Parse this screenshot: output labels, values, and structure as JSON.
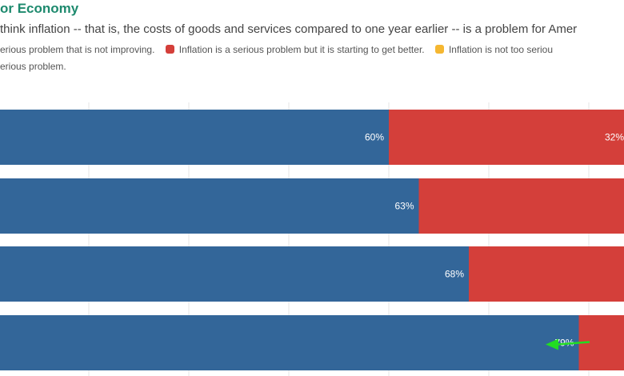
{
  "chart_data": {
    "type": "bar",
    "orientation": "horizontal",
    "stacked": true,
    "title": "or Economy",
    "subtitle": "think inflation -- that is, the costs of goods and services compared to one year earlier -- is a problem for Amer",
    "legend": [
      {
        "text": "erious problem that is not improving.",
        "color": "#336699"
      },
      {
        "text": "Inflation is a serious problem but it is starting to get better.",
        "color": "#d43f3a"
      },
      {
        "text": "Inflation is not too seriou",
        "color": "#f5b731"
      },
      {
        "text": "erious problem.",
        "color": ""
      }
    ],
    "series": [
      {
        "name": "erious problem that is not improving.",
        "values": [
          60,
          63,
          68,
          79
        ],
        "labels": [
          "60%",
          "63%",
          "68%",
          "79%"
        ],
        "color": "#336699"
      },
      {
        "name": "Inflation is a serious problem but it is starting to get better.",
        "values": [
          32,
          null,
          null,
          null
        ],
        "labels": [
          "32%",
          "",
          "",
          ""
        ],
        "color": "#d43f3a"
      }
    ],
    "xlim": [
      0,
      100
    ],
    "grid": true,
    "legend_position": "top"
  },
  "annotation": {
    "type": "arrow",
    "color": "#22dd22",
    "target": "79%"
  }
}
